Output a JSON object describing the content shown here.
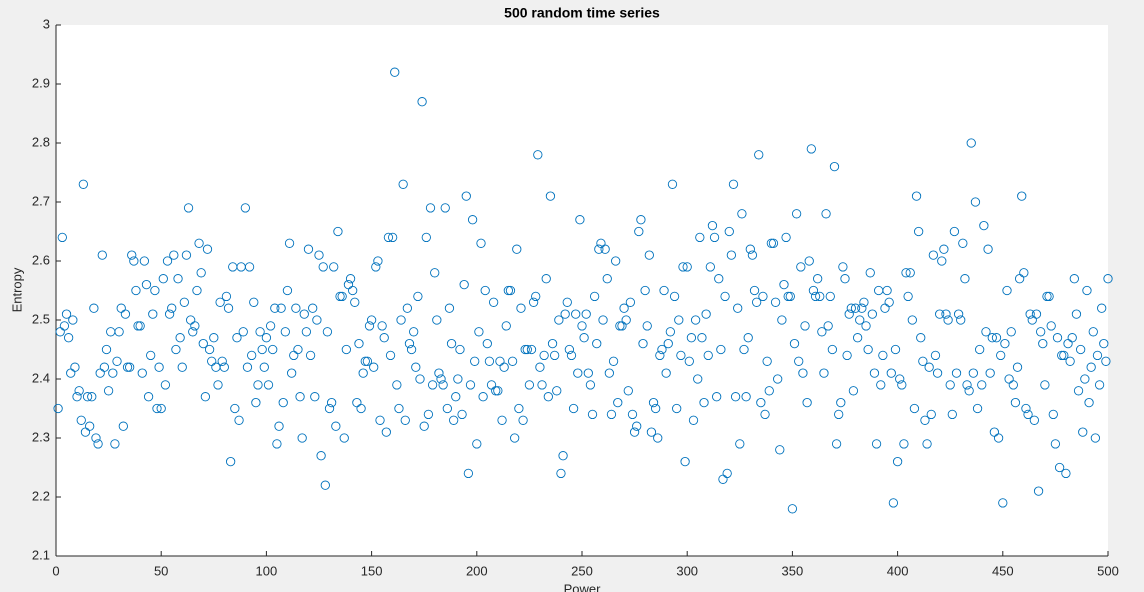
{
  "chart_data": {
    "type": "scatter",
    "title": "500 random time series",
    "x_label": "Power",
    "y_label": "Entropy",
    "color": "#0072bd",
    "xlim": [
      0,
      500
    ],
    "xticks": [
      0,
      50,
      100,
      150,
      200,
      250,
      300,
      350,
      400,
      450,
      500
    ],
    "ylim": [
      2.1,
      3
    ],
    "yticks": [
      2.1,
      2.2,
      2.3,
      2.4,
      2.5,
      2.6,
      2.7,
      2.8,
      2.9,
      3
    ],
    "x": [
      1,
      2,
      3,
      4,
      5,
      6,
      7,
      8,
      9,
      10,
      11,
      12,
      13,
      14,
      15,
      16,
      17,
      18,
      19,
      20,
      21,
      22,
      23,
      24,
      25,
      26,
      27,
      28,
      29,
      30,
      31,
      32,
      33,
      34,
      35,
      36,
      37,
      38,
      39,
      40,
      41,
      42,
      43,
      44,
      45,
      46,
      47,
      48,
      49,
      50,
      51,
      52,
      53,
      54,
      55,
      56,
      57,
      58,
      59,
      60,
      61,
      62,
      63,
      64,
      65,
      66,
      67,
      68,
      69,
      70,
      71,
      72,
      73,
      74,
      75,
      76,
      77,
      78,
      79,
      80,
      81,
      82,
      83,
      84,
      85,
      86,
      87,
      88,
      89,
      90,
      91,
      92,
      93,
      94,
      95,
      96,
      97,
      98,
      99,
      100,
      101,
      102,
      103,
      104,
      105,
      106,
      107,
      108,
      109,
      110,
      111,
      112,
      113,
      114,
      115,
      116,
      117,
      118,
      119,
      120,
      121,
      122,
      123,
      124,
      125,
      126,
      127,
      128,
      129,
      130,
      131,
      132,
      133,
      134,
      135,
      136,
      137,
      138,
      139,
      140,
      141,
      142,
      143,
      144,
      145,
      146,
      147,
      148,
      149,
      150,
      151,
      152,
      153,
      154,
      155,
      156,
      157,
      158,
      159,
      160,
      161,
      162,
      163,
      164,
      165,
      166,
      167,
      168,
      169,
      170,
      171,
      172,
      173,
      174,
      175,
      176,
      177,
      178,
      179,
      180,
      181,
      182,
      183,
      184,
      185,
      186,
      187,
      188,
      189,
      190,
      191,
      192,
      193,
      194,
      195,
      196,
      197,
      198,
      199,
      200,
      201,
      202,
      203,
      204,
      205,
      206,
      207,
      208,
      209,
      210,
      211,
      212,
      213,
      214,
      215,
      216,
      217,
      218,
      219,
      220,
      221,
      222,
      223,
      224,
      225,
      226,
      227,
      228,
      229,
      230,
      231,
      232,
      233,
      234,
      235,
      236,
      237,
      238,
      239,
      240,
      241,
      242,
      243,
      244,
      245,
      246,
      247,
      248,
      249,
      250,
      251,
      252,
      253,
      254,
      255,
      256,
      257,
      258,
      259,
      260,
      261,
      262,
      263,
      264,
      265,
      266,
      267,
      268,
      269,
      270,
      271,
      272,
      273,
      274,
      275,
      276,
      277,
      278,
      279,
      280,
      281,
      282,
      283,
      284,
      285,
      286,
      287,
      288,
      289,
      290,
      291,
      292,
      293,
      294,
      295,
      296,
      297,
      298,
      299,
      300,
      301,
      302,
      303,
      304,
      305,
      306,
      307,
      308,
      309,
      310,
      311,
      312,
      313,
      314,
      315,
      316,
      317,
      318,
      319,
      320,
      321,
      322,
      323,
      324,
      325,
      326,
      327,
      328,
      329,
      330,
      331,
      332,
      333,
      334,
      335,
      336,
      337,
      338,
      339,
      340,
      341,
      342,
      343,
      344,
      345,
      346,
      347,
      348,
      349,
      350,
      351,
      352,
      353,
      354,
      355,
      356,
      357,
      358,
      359,
      360,
      361,
      362,
      363,
      364,
      365,
      366,
      367,
      368,
      369,
      370,
      371,
      372,
      373,
      374,
      375,
      376,
      377,
      378,
      379,
      380,
      381,
      382,
      383,
      384,
      385,
      386,
      387,
      388,
      389,
      390,
      391,
      392,
      393,
      394,
      395,
      396,
      397,
      398,
      399,
      400,
      401,
      402,
      403,
      404,
      405,
      406,
      407,
      408,
      409,
      410,
      411,
      412,
      413,
      414,
      415,
      416,
      417,
      418,
      419,
      420,
      421,
      422,
      423,
      424,
      425,
      426,
      427,
      428,
      429,
      430,
      431,
      432,
      433,
      434,
      435,
      436,
      437,
      438,
      439,
      440,
      441,
      442,
      443,
      444,
      445,
      446,
      447,
      448,
      449,
      450,
      451,
      452,
      453,
      454,
      455,
      456,
      457,
      458,
      459,
      460,
      461,
      462,
      463,
      464,
      465,
      466,
      467,
      468,
      469,
      470,
      471,
      472,
      473,
      474,
      475,
      476,
      477,
      478,
      479,
      480,
      481,
      482,
      483,
      484,
      485,
      486,
      487,
      488,
      489,
      490,
      491,
      492,
      493,
      494,
      495,
      496,
      497,
      498,
      499,
      500
    ],
    "values": [
      2.35,
      2.48,
      2.64,
      2.49,
      2.51,
      2.47,
      2.41,
      2.5,
      2.42,
      2.37,
      2.38,
      2.33,
      2.73,
      2.31,
      2.37,
      2.32,
      2.37,
      2.52,
      2.3,
      2.29,
      2.41,
      2.61,
      2.42,
      2.45,
      2.38,
      2.48,
      2.41,
      2.29,
      2.43,
      2.48,
      2.52,
      2.32,
      2.51,
      2.42,
      2.42,
      2.61,
      2.6,
      2.55,
      2.49,
      2.49,
      2.41,
      2.6,
      2.56,
      2.37,
      2.44,
      2.51,
      2.55,
      2.35,
      2.42,
      2.35,
      2.57,
      2.39,
      2.6,
      2.51,
      2.52,
      2.61,
      2.45,
      2.57,
      2.47,
      2.42,
      2.53,
      2.61,
      2.69,
      2.5,
      2.48,
      2.49,
      2.55,
      2.63,
      2.58,
      2.46,
      2.37,
      2.62,
      2.45,
      2.43,
      2.47,
      2.42,
      2.39,
      2.53,
      2.43,
      2.42,
      2.54,
      2.52,
      2.26,
      2.59,
      2.35,
      2.47,
      2.33,
      2.59,
      2.48,
      2.69,
      2.42,
      2.59,
      2.44,
      2.53,
      2.36,
      2.39,
      2.48,
      2.45,
      2.42,
      2.47,
      2.39,
      2.49,
      2.45,
      2.52,
      2.29,
      2.32,
      2.52,
      2.36,
      2.48,
      2.55,
      2.63,
      2.41,
      2.44,
      2.52,
      2.45,
      2.37,
      2.3,
      2.51,
      2.48,
      2.62,
      2.44,
      2.52,
      2.37,
      2.5,
      2.61,
      2.27,
      2.59,
      2.22,
      2.48,
      2.35,
      2.36,
      2.59,
      2.32,
      2.65,
      2.54,
      2.54,
      2.3,
      2.45,
      2.56,
      2.57,
      2.55,
      2.53,
      2.36,
      2.46,
      2.35,
      2.41,
      2.43,
      2.43,
      2.49,
      2.5,
      2.42,
      2.59,
      2.6,
      2.33,
      2.49,
      2.47,
      2.31,
      2.64,
      2.44,
      2.64,
      2.92,
      2.39,
      2.35,
      2.5,
      2.73,
      2.33,
      2.52,
      2.46,
      2.45,
      2.48,
      2.42,
      2.54,
      2.4,
      2.87,
      2.32,
      2.64,
      2.34,
      2.69,
      2.39,
      2.58,
      2.5,
      2.41,
      2.4,
      2.39,
      2.69,
      2.35,
      2.52,
      2.46,
      2.33,
      2.37,
      2.4,
      2.45,
      2.34,
      2.56,
      2.71,
      2.24,
      2.39,
      2.67,
      2.43,
      2.29,
      2.48,
      2.63,
      2.37,
      2.55,
      2.46,
      2.43,
      2.39,
      2.53,
      2.38,
      2.38,
      2.43,
      2.33,
      2.42,
      2.49,
      2.55,
      2.55,
      2.43,
      2.3,
      2.62,
      2.35,
      2.52,
      2.33,
      2.45,
      2.45,
      2.39,
      2.45,
      2.53,
      2.54,
      2.78,
      2.42,
      2.39,
      2.44,
      2.57,
      2.37,
      2.71,
      2.46,
      2.44,
      2.38,
      2.5,
      2.24,
      2.27,
      2.51,
      2.53,
      2.45,
      2.44,
      2.35,
      2.51,
      2.41,
      2.67,
      2.49,
      2.47,
      2.51,
      2.41,
      2.39,
      2.34,
      2.54,
      2.46,
      2.62,
      2.63,
      2.5,
      2.62,
      2.57,
      2.41,
      2.34,
      2.43,
      2.6,
      2.36,
      2.49,
      2.49,
      2.52,
      2.5,
      2.38,
      2.53,
      2.34,
      2.31,
      2.32,
      2.65,
      2.67,
      2.46,
      2.55,
      2.49,
      2.61,
      2.31,
      2.36,
      2.35,
      2.3,
      2.44,
      2.45,
      2.55,
      2.41,
      2.46,
      2.48,
      2.73,
      2.54,
      2.35,
      2.5,
      2.44,
      2.59,
      2.26,
      2.59,
      2.43,
      2.47,
      2.33,
      2.5,
      2.4,
      2.64,
      2.47,
      2.36,
      2.51,
      2.44,
      2.59,
      2.66,
      2.64,
      2.37,
      2.57,
      2.45,
      2.23,
      2.54,
      2.24,
      2.65,
      2.61,
      2.73,
      2.37,
      2.52,
      2.29,
      2.68,
      2.45,
      2.37,
      2.47,
      2.62,
      2.61,
      2.55,
      2.53,
      2.78,
      2.36,
      2.54,
      2.34,
      2.43,
      2.38,
      2.63,
      2.63,
      2.53,
      2.4,
      2.28,
      2.5,
      2.56,
      2.64,
      2.54,
      2.54,
      2.18,
      2.46,
      2.68,
      2.43,
      2.59,
      2.41,
      2.49,
      2.36,
      2.6,
      2.79,
      2.55,
      2.54,
      2.57,
      2.54,
      2.48,
      2.41,
      2.68,
      2.49,
      2.54,
      2.45,
      2.76,
      2.29,
      2.34,
      2.36,
      2.59,
      2.57,
      2.44,
      2.51,
      2.52,
      2.38,
      2.52,
      2.47,
      2.5,
      2.52,
      2.53,
      2.49,
      2.45,
      2.58,
      2.51,
      2.41,
      2.29,
      2.55,
      2.39,
      2.44,
      2.52,
      2.55,
      2.53,
      2.41,
      2.19,
      2.45,
      2.26,
      2.4,
      2.39,
      2.29,
      2.58,
      2.54,
      2.58,
      2.5,
      2.35,
      2.71,
      2.65,
      2.47,
      2.43,
      2.33,
      2.29,
      2.42,
      2.34,
      2.61,
      2.44,
      2.41,
      2.51,
      2.6,
      2.62,
      2.51,
      2.5,
      2.39,
      2.34,
      2.65,
      2.41,
      2.51,
      2.5,
      2.63,
      2.57,
      2.39,
      2.38,
      2.8,
      2.41,
      2.7,
      2.35,
      2.45,
      2.39,
      2.66,
      2.48,
      2.62,
      2.41,
      2.47,
      2.31,
      2.47,
      2.3,
      2.44,
      2.19,
      2.46,
      2.55,
      2.4,
      2.48,
      2.39,
      2.36,
      2.42,
      2.57,
      2.71,
      2.58,
      2.35,
      2.34,
      2.51,
      2.5,
      2.33,
      2.51,
      2.21,
      2.48,
      2.46,
      2.39,
      2.54,
      2.54,
      2.49,
      2.34,
      2.29,
      2.47,
      2.25,
      2.44,
      2.44,
      2.24,
      2.46,
      2.43,
      2.47,
      2.57,
      2.51,
      2.38,
      2.45,
      2.31,
      2.4,
      2.55,
      2.36,
      2.42,
      2.48,
      2.3,
      2.44,
      2.39,
      2.52,
      2.46,
      2.43,
      2.57
    ]
  }
}
